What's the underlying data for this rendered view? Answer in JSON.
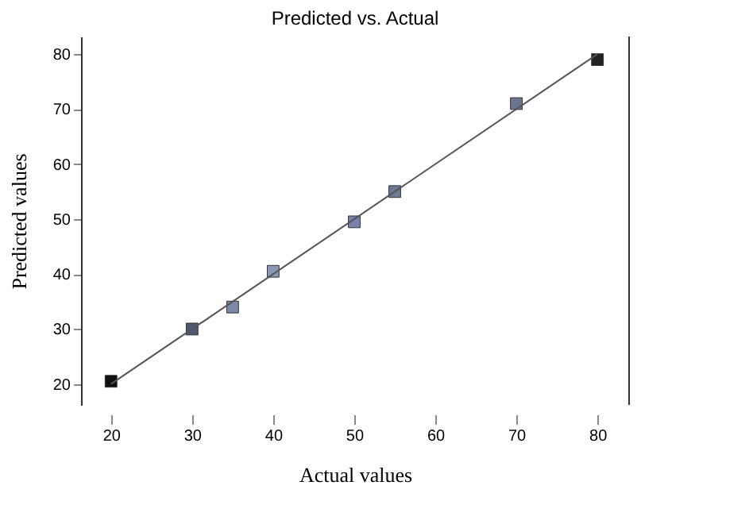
{
  "chart_data": {
    "type": "scatter",
    "title": "Predicted vs. Actual",
    "xlabel": "Actual values",
    "ylabel": "Predicted values",
    "x": [
      20,
      30,
      35,
      40,
      50,
      55,
      70,
      80
    ],
    "series": [
      {
        "values": [
          20.5,
          30,
          34,
          40.5,
          49.5,
          55,
          71,
          79
        ],
        "colors": [
          "#111111",
          "#505870",
          "#7c88a8",
          "#8a96b6",
          "#7c82b0",
          "#6e7a96",
          "#6a7690",
          "#222222"
        ],
        "marker": "square"
      },
      {
        "type": "line",
        "x": [
          20,
          80
        ],
        "values": [
          20,
          80
        ],
        "color": "#555555",
        "marker": "none",
        "line_style": "solid"
      }
    ],
    "xlim": [
      16.3,
      83.9
    ],
    "ylim": [
      16.2,
      83.2
    ],
    "xticks": [
      20,
      30,
      40,
      50,
      60,
      70,
      80
    ],
    "yticks": [
      20,
      30,
      40,
      50,
      60,
      70,
      80
    ],
    "grid": false
  }
}
